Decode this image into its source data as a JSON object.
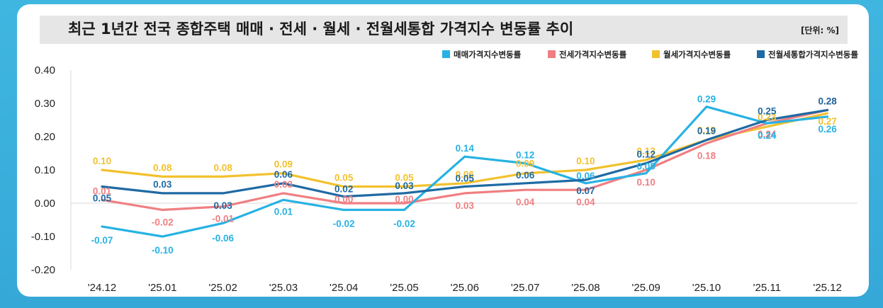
{
  "header": {
    "title": "최근 1년간 전국 종합주택 매매 · 전세 · 월세 · 전월세통합 가격지수 변동률 추이",
    "unit": "[단위: %]"
  },
  "colors": {
    "background": "#3cb3de",
    "grid": "#d9d9d9"
  },
  "chart_data": {
    "type": "line",
    "title": "최근 1년간 전국 종합주택 매매 · 전세 · 월세 · 전월세통합 가격지수 변동률 추이",
    "unit": "[단위: %]",
    "xlabel": "",
    "ylabel": "",
    "ylim": [
      -0.2,
      0.4
    ],
    "yticks": [
      0.4,
      0.3,
      0.2,
      0.1,
      0.0,
      -0.1,
      -0.2
    ],
    "ytick_labels": [
      "0.40",
      "0.30",
      "0.20",
      "0.10",
      "0.00",
      "-0.10",
      "-0.20"
    ],
    "legend_position": "top-right",
    "grid": false,
    "categories": [
      "'24.12",
      "'25.01",
      "'25.02",
      "'25.03",
      "'25.04",
      "'25.05",
      "'25.06",
      "'25.07",
      "'25.08",
      "'25.09",
      "'25.10",
      "'25.11",
      "'25.12"
    ],
    "series": [
      {
        "name": "월세가격지수변동률",
        "color": "#f2c12e",
        "values": [
          0.1,
          0.08,
          0.08,
          0.09,
          0.05,
          0.05,
          0.06,
          0.09,
          0.1,
          0.13,
          0.19,
          0.23,
          0.27
        ],
        "labels": [
          "0.10",
          "0.08",
          "0.08",
          "0.09",
          "0.05",
          "0.05",
          "0.06",
          "0.09",
          "0.10",
          "0.13",
          "0.19",
          "0.23",
          "0.27"
        ]
      },
      {
        "name": "전세가격지수변동률",
        "color": "#ef7f82",
        "values": [
          0.01,
          -0.02,
          -0.01,
          0.03,
          0.0,
          0.0,
          0.03,
          0.04,
          0.04,
          0.1,
          0.18,
          0.24,
          0.28
        ],
        "labels": [
          "0.01",
          "-0.02",
          "-0.01",
          "0.03",
          "0.00",
          "0.00",
          "0.03",
          "0.04",
          "0.04",
          "0.10",
          "0.18",
          "0.24",
          "0.28"
        ]
      },
      {
        "name": "매매가격지수변동률",
        "color": "#27b2e3",
        "values": [
          -0.07,
          -0.1,
          -0.06,
          0.01,
          -0.02,
          -0.02,
          0.14,
          0.12,
          0.06,
          0.09,
          0.29,
          0.24,
          0.26
        ],
        "labels": [
          "-0.07",
          "-0.10",
          "-0.06",
          "0.01",
          "-0.02",
          "-0.02",
          "0.14",
          "0.12",
          "0.06",
          "0.09",
          "0.29",
          "0.24",
          "0.26"
        ]
      },
      {
        "name": "전월세통합가격지수변동률",
        "color": "#1f6aa3",
        "values": [
          0.05,
          0.03,
          0.03,
          0.06,
          0.02,
          0.03,
          0.05,
          0.06,
          0.07,
          0.12,
          0.19,
          0.25,
          0.28
        ],
        "labels": [
          "0.05",
          "0.03",
          "0.03",
          "0.06",
          "0.02",
          "0.03",
          "0.05",
          "0.06",
          "0.07",
          "0.12",
          "0.19",
          "0.25",
          "0.28"
        ]
      }
    ],
    "legend": [
      {
        "name": "매매가격지수변동률",
        "color": "#27b2e3"
      },
      {
        "name": "전세가격지수변동률",
        "color": "#ef7f82"
      },
      {
        "name": "월세가격지수변동률",
        "color": "#f2c12e"
      },
      {
        "name": "전월세통합가격지수변동률",
        "color": "#1f6aa3"
      }
    ]
  }
}
